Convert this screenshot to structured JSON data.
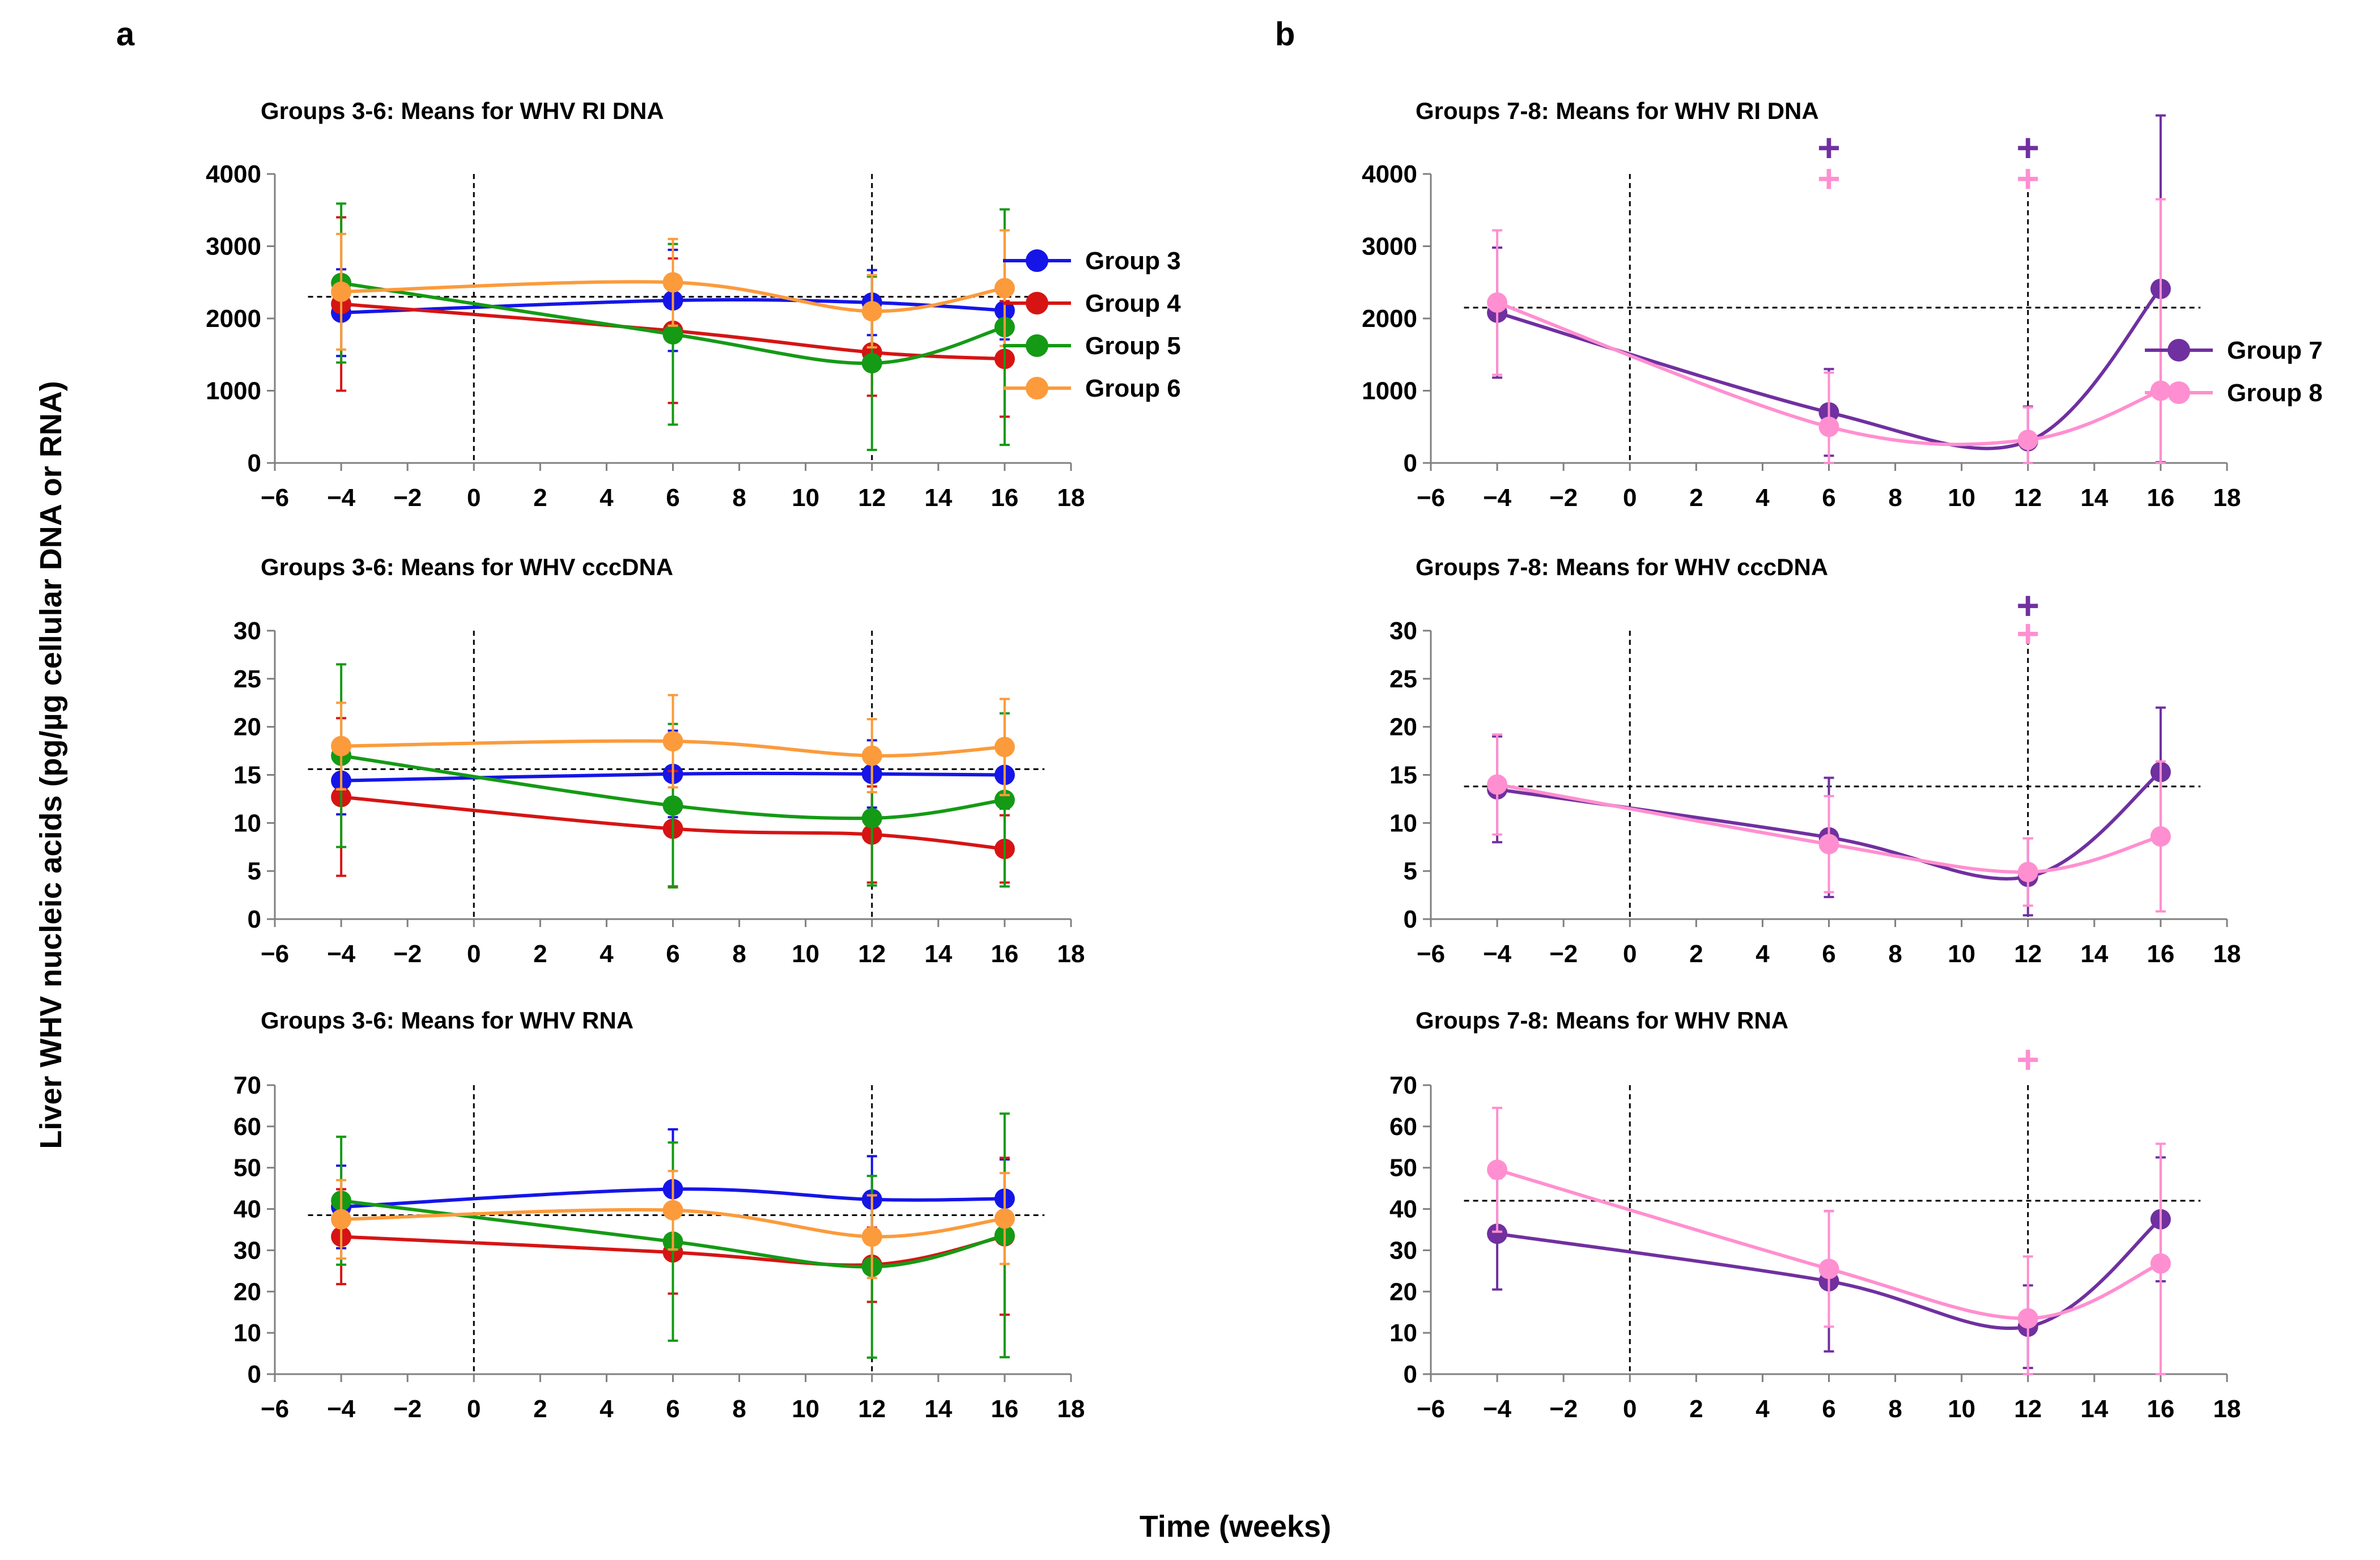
{
  "figure": {
    "panel_a_letter": "a",
    "panel_b_letter": "b",
    "ylabel": "Liver WHV nucleic acids (pg/µg cellular DNA or RNA)",
    "xlabel": "Time (weeks)"
  },
  "colors": {
    "group3": "#1515e8",
    "group4": "#d61414",
    "group5": "#159a15",
    "group6": "#fb9b3c",
    "group7": "#7030a0",
    "group8": "#ff8fd0"
  },
  "chart_data": [
    {
      "id": "a1",
      "type": "line",
      "title": "Groups 3-6: Means for WHV RI DNA",
      "xlim": [
        -6,
        18
      ],
      "xticks": [
        -6,
        -4,
        -2,
        0,
        2,
        4,
        6,
        8,
        10,
        12,
        14,
        16,
        18
      ],
      "xtick_labels": [
        "−6",
        "−4",
        "−2",
        "0",
        "2",
        "4",
        "6",
        "8",
        "10",
        "12",
        "14",
        "16",
        "18"
      ],
      "ylim": [
        0,
        4000
      ],
      "yticks": [
        0,
        1000,
        2000,
        3000,
        4000
      ],
      "ytick_labels": [
        "0",
        "1000",
        "2000",
        "3000",
        "4000"
      ],
      "hline": 2300,
      "vlines": [
        0,
        12
      ],
      "legend": [
        "Group 3",
        "Group 4",
        "Group 5",
        "Group 6"
      ],
      "series": [
        {
          "name": "Group 3",
          "color_key": "group3",
          "x": [
            -4,
            6,
            12,
            16
          ],
          "y": [
            2080,
            2250,
            2220,
            2110
          ],
          "err": [
            600,
            700,
            450,
            400
          ]
        },
        {
          "name": "Group 4",
          "color_key": "group4",
          "x": [
            -4,
            6,
            12,
            16
          ],
          "y": [
            2200,
            1830,
            1530,
            1440
          ],
          "err": [
            1200,
            1000,
            600,
            800
          ]
        },
        {
          "name": "Group 5",
          "color_key": "group5",
          "x": [
            -4,
            6,
            12,
            16
          ],
          "y": [
            2490,
            1780,
            1380,
            1880
          ],
          "err": [
            1100,
            1250,
            1200,
            1630
          ]
        },
        {
          "name": "Group 6",
          "color_key": "group6",
          "x": [
            -4,
            6,
            12,
            16
          ],
          "y": [
            2370,
            2500,
            2100,
            2420
          ],
          "err": [
            800,
            600,
            500,
            800
          ]
        }
      ]
    },
    {
      "id": "a2",
      "type": "line",
      "title": "Groups 3-6: Means for WHV cccDNA",
      "xlim": [
        -6,
        18
      ],
      "xticks": [
        -6,
        -4,
        -2,
        0,
        2,
        4,
        6,
        8,
        10,
        12,
        14,
        16,
        18
      ],
      "xtick_labels": [
        "−6",
        "−4",
        "−2",
        "0",
        "2",
        "4",
        "6",
        "8",
        "10",
        "12",
        "14",
        "16",
        "18"
      ],
      "ylim": [
        0,
        30
      ],
      "yticks": [
        0,
        5,
        10,
        15,
        20,
        25,
        30
      ],
      "ytick_labels": [
        "0",
        "5",
        "10",
        "15",
        "20",
        "25",
        "30"
      ],
      "hline": 15.6,
      "vlines": [
        0,
        12
      ],
      "legend": [],
      "series": [
        {
          "name": "Group 3",
          "color_key": "group3",
          "x": [
            -4,
            6,
            12,
            16
          ],
          "y": [
            14.4,
            15.1,
            15.1,
            15.0
          ],
          "err": [
            3.5,
            4.5,
            3.5,
            3.5
          ]
        },
        {
          "name": "Group 4",
          "color_key": "group4",
          "x": [
            -4,
            6,
            12,
            16
          ],
          "y": [
            12.7,
            9.4,
            8.8,
            7.3
          ],
          "err": [
            8.2,
            6.0,
            5.0,
            3.5
          ]
        },
        {
          "name": "Group 5",
          "color_key": "group5",
          "x": [
            -4,
            6,
            12,
            16
          ],
          "y": [
            17.0,
            11.8,
            10.5,
            12.4
          ],
          "err": [
            9.5,
            8.5,
            7.0,
            9.0
          ]
        },
        {
          "name": "Group 6",
          "color_key": "group6",
          "x": [
            -4,
            6,
            12,
            16
          ],
          "y": [
            18.0,
            18.5,
            17.0,
            17.9
          ],
          "err": [
            4.5,
            4.8,
            3.8,
            5.0
          ]
        }
      ]
    },
    {
      "id": "a3",
      "type": "line",
      "title": "Groups 3-6: Means for WHV RNA",
      "xlim": [
        -6,
        18
      ],
      "xticks": [
        -6,
        -4,
        -2,
        0,
        2,
        4,
        6,
        8,
        10,
        12,
        14,
        16,
        18
      ],
      "xtick_labels": [
        "−6",
        "−4",
        "−2",
        "0",
        "2",
        "4",
        "6",
        "8",
        "10",
        "12",
        "14",
        "16",
        "18"
      ],
      "ylim": [
        0,
        70
      ],
      "yticks": [
        0,
        10,
        20,
        30,
        40,
        50,
        60,
        70
      ],
      "ytick_labels": [
        "0",
        "10",
        "20",
        "30",
        "40",
        "50",
        "60",
        "70"
      ],
      "hline": 38.5,
      "vlines": [
        0,
        12
      ],
      "legend": [],
      "series": [
        {
          "name": "Group 3",
          "color_key": "group3",
          "x": [
            -4,
            6,
            12,
            16
          ],
          "y": [
            40.5,
            44.8,
            42.3,
            42.5
          ],
          "err": [
            10,
            14.5,
            10.5,
            9.5
          ]
        },
        {
          "name": "Group 4",
          "color_key": "group4",
          "x": [
            -4,
            6,
            12,
            16
          ],
          "y": [
            33.3,
            29.5,
            26.5,
            33.4
          ],
          "err": [
            11.5,
            10,
            9,
            19
          ]
        },
        {
          "name": "Group 5",
          "color_key": "group5",
          "x": [
            -4,
            6,
            12,
            16
          ],
          "y": [
            42.0,
            32.1,
            26.0,
            33.6
          ],
          "err": [
            15.5,
            24,
            22,
            29.5
          ]
        },
        {
          "name": "Group 6",
          "color_key": "group6",
          "x": [
            -4,
            6,
            12,
            16
          ],
          "y": [
            37.5,
            39.7,
            33.3,
            37.7
          ],
          "err": [
            9.5,
            9.5,
            10,
            11
          ]
        }
      ]
    },
    {
      "id": "b1",
      "type": "line",
      "title": "Groups 7-8: Means for WHV RI DNA",
      "xlim": [
        -6,
        18
      ],
      "xticks": [
        -6,
        -4,
        -2,
        0,
        2,
        4,
        6,
        8,
        10,
        12,
        14,
        16,
        18
      ],
      "xtick_labels": [
        "−6",
        "−4",
        "−2",
        "0",
        "2",
        "4",
        "6",
        "8",
        "10",
        "12",
        "14",
        "16",
        "18"
      ],
      "ylim": [
        0,
        4000
      ],
      "yticks": [
        0,
        1000,
        2000,
        3000,
        4000
      ],
      "ytick_labels": [
        "0",
        "1000",
        "2000",
        "3000",
        "4000"
      ],
      "hline": 2150,
      "vlines": [
        0,
        12
      ],
      "legend": [
        "Group 7",
        "Group 8"
      ],
      "significance": [
        {
          "x": 6,
          "value": 4350,
          "color_key": "group7",
          "symbol": "+"
        },
        {
          "x": 6,
          "value": 3920,
          "color_key": "group8",
          "symbol": "+"
        },
        {
          "x": 12,
          "value": 4350,
          "color_key": "group7",
          "symbol": "+"
        },
        {
          "x": 12,
          "value": 3920,
          "color_key": "group8",
          "symbol": "+"
        }
      ],
      "series": [
        {
          "name": "Group 7",
          "color_key": "group7",
          "x": [
            -4,
            6,
            12,
            16
          ],
          "y": [
            2080,
            700,
            300,
            2410
          ],
          "err": [
            900,
            600,
            480,
            2400
          ]
        },
        {
          "name": "Group 8",
          "color_key": "group8",
          "x": [
            -4,
            6,
            12,
            16
          ],
          "y": [
            2220,
            500,
            320,
            1000
          ],
          "err": [
            1000,
            750,
            450,
            2650
          ]
        }
      ]
    },
    {
      "id": "b2",
      "type": "line",
      "title": "Groups 7-8: Means for WHV cccDNA",
      "xlim": [
        -6,
        18
      ],
      "xticks": [
        -6,
        -4,
        -2,
        0,
        2,
        4,
        6,
        8,
        10,
        12,
        14,
        16,
        18
      ],
      "xtick_labels": [
        "−6",
        "−4",
        "−2",
        "0",
        "2",
        "4",
        "6",
        "8",
        "10",
        "12",
        "14",
        "16",
        "18"
      ],
      "ylim": [
        0,
        30
      ],
      "yticks": [
        0,
        5,
        10,
        15,
        20,
        25,
        30
      ],
      "ytick_labels": [
        "0",
        "5",
        "10",
        "15",
        "20",
        "25",
        "30"
      ],
      "hline": 13.8,
      "vlines": [
        0,
        12
      ],
      "legend": [],
      "significance": [
        {
          "x": 12,
          "value": 32.5,
          "color_key": "group7",
          "symbol": "+"
        },
        {
          "x": 12,
          "value": 29.6,
          "color_key": "group8",
          "symbol": "+"
        }
      ],
      "series": [
        {
          "name": "Group 7",
          "color_key": "group7",
          "x": [
            -4,
            6,
            12,
            16
          ],
          "y": [
            13.5,
            8.5,
            4.4,
            15.3
          ],
          "err": [
            5.5,
            6.2,
            4.0,
            6.7
          ]
        },
        {
          "name": "Group 8",
          "color_key": "group8",
          "x": [
            -4,
            6,
            12,
            16
          ],
          "y": [
            14.0,
            7.8,
            4.9,
            8.6
          ],
          "err": [
            5.2,
            5.0,
            3.5,
            7.8
          ]
        }
      ]
    },
    {
      "id": "b3",
      "type": "line",
      "title": "Groups 7-8: Means for WHV RNA",
      "xlim": [
        -6,
        18
      ],
      "xticks": [
        -6,
        -4,
        -2,
        0,
        2,
        4,
        6,
        8,
        10,
        12,
        14,
        16,
        18
      ],
      "xtick_labels": [
        "−6",
        "−4",
        "−2",
        "0",
        "2",
        "4",
        "6",
        "8",
        "10",
        "12",
        "14",
        "16",
        "18"
      ],
      "ylim": [
        0,
        70
      ],
      "yticks": [
        0,
        10,
        20,
        30,
        40,
        50,
        60,
        70
      ],
      "ytick_labels": [
        "0",
        "10",
        "20",
        "30",
        "40",
        "50",
        "60",
        "70"
      ],
      "hline": 42,
      "vlines": [
        0,
        12
      ],
      "legend": [],
      "significance": [
        {
          "x": 12,
          "value": 76,
          "color_key": "group8",
          "symbol": "+"
        }
      ],
      "series": [
        {
          "name": "Group 7",
          "color_key": "group7",
          "x": [
            -4,
            6,
            12,
            16
          ],
          "y": [
            34.0,
            22.5,
            11.5,
            37.5
          ],
          "err": [
            13.5,
            17,
            10,
            15
          ]
        },
        {
          "name": "Group 8",
          "color_key": "group8",
          "x": [
            -4,
            6,
            12,
            16
          ],
          "y": [
            49.5,
            25.5,
            13.5,
            26.8
          ],
          "err": [
            15,
            14,
            15,
            29
          ]
        }
      ]
    }
  ]
}
